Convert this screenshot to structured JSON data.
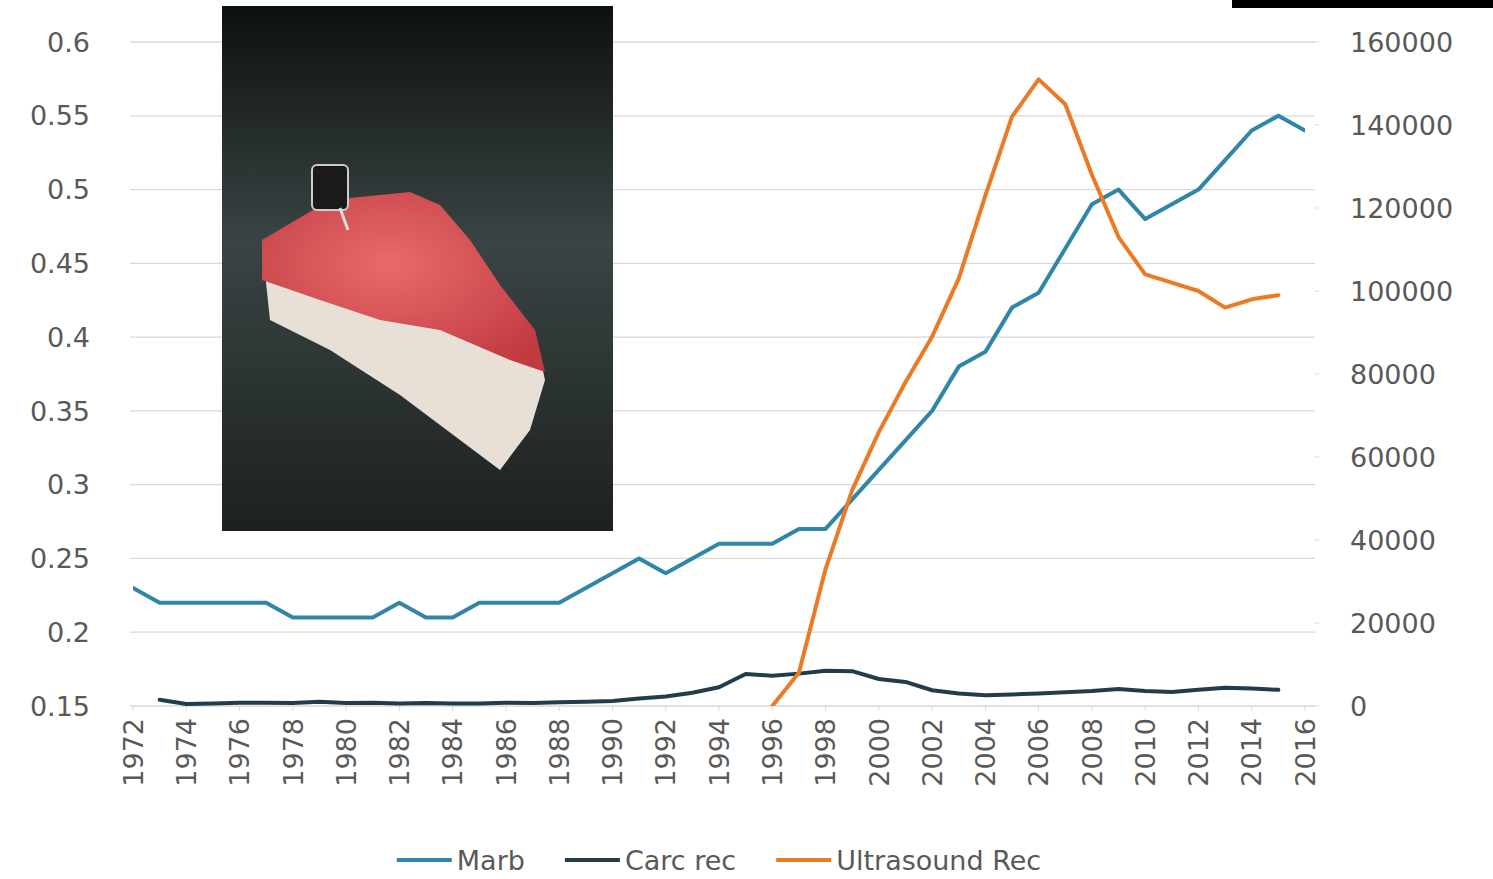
{
  "chart_data": {
    "type": "line",
    "x": [
      1972,
      1973,
      1974,
      1975,
      1976,
      1977,
      1978,
      1979,
      1980,
      1981,
      1982,
      1983,
      1984,
      1985,
      1986,
      1987,
      1988,
      1989,
      1990,
      1991,
      1992,
      1993,
      1994,
      1995,
      1996,
      1997,
      1998,
      1999,
      2000,
      2001,
      2002,
      2003,
      2004,
      2005,
      2006,
      2007,
      2008,
      2009,
      2010,
      2011,
      2012,
      2013,
      2014,
      2015,
      2016
    ],
    "xlim": [
      1972,
      2016
    ],
    "xticks": [
      1972,
      1974,
      1976,
      1978,
      1980,
      1982,
      1984,
      1986,
      1988,
      1990,
      1992,
      1994,
      1996,
      1998,
      2000,
      2002,
      2004,
      2006,
      2008,
      2010,
      2012,
      2014,
      2016
    ],
    "ylim": [
      0.15,
      0.6
    ],
    "yticks": [
      0.15,
      0.2,
      0.25,
      0.3,
      0.35,
      0.4,
      0.45,
      0.5,
      0.55,
      0.6
    ],
    "y2lim": [
      0,
      160000
    ],
    "y2ticks": [
      0,
      20000,
      40000,
      60000,
      80000,
      100000,
      120000,
      140000,
      160000
    ],
    "grid": true,
    "legend": "bottom",
    "series": [
      {
        "name": "Marb",
        "color": "#2f86a6",
        "values": [
          0.23,
          0.22,
          0.22,
          0.22,
          0.22,
          0.22,
          0.21,
          0.21,
          0.21,
          0.21,
          0.22,
          0.21,
          0.21,
          0.22,
          0.22,
          0.22,
          0.22,
          0.23,
          0.24,
          0.25,
          0.24,
          0.25,
          0.26,
          0.26,
          0.26,
          0.27,
          0.27,
          0.29,
          0.31,
          0.33,
          0.35,
          0.38,
          0.39,
          0.42,
          0.43,
          0.46,
          0.49,
          0.5,
          0.48,
          0.49,
          0.5,
          0.52,
          0.54,
          0.55,
          0.54
        ]
      },
      {
        "name": "Carc rec",
        "color": "#223c4c",
        "axis": "y2",
        "values": [
          null,
          1500,
          500,
          600,
          800,
          800,
          700,
          1000,
          700,
          800,
          600,
          700,
          600,
          600,
          800,
          700,
          900,
          1000,
          1200,
          1800,
          2300,
          3200,
          4500,
          7700,
          7300,
          7800,
          8500,
          8400,
          6500,
          5800,
          3800,
          3000,
          2600,
          2800,
          3000,
          3300,
          3600,
          4100,
          3600,
          3400,
          3900,
          4400,
          4200,
          3900,
          null
        ]
      },
      {
        "name": "Ultrasound Rec",
        "color": "#ec7a24",
        "axis": "y2",
        "values": [
          null,
          null,
          null,
          null,
          null,
          null,
          null,
          null,
          null,
          null,
          null,
          null,
          null,
          null,
          null,
          null,
          null,
          null,
          null,
          null,
          null,
          null,
          null,
          null,
          0,
          8000,
          33000,
          52000,
          66000,
          78000,
          89000,
          103000,
          123000,
          142000,
          151000,
          145000,
          128000,
          113000,
          104000,
          102000,
          100000,
          96000,
          98000,
          99000,
          null
        ]
      }
    ]
  }
}
